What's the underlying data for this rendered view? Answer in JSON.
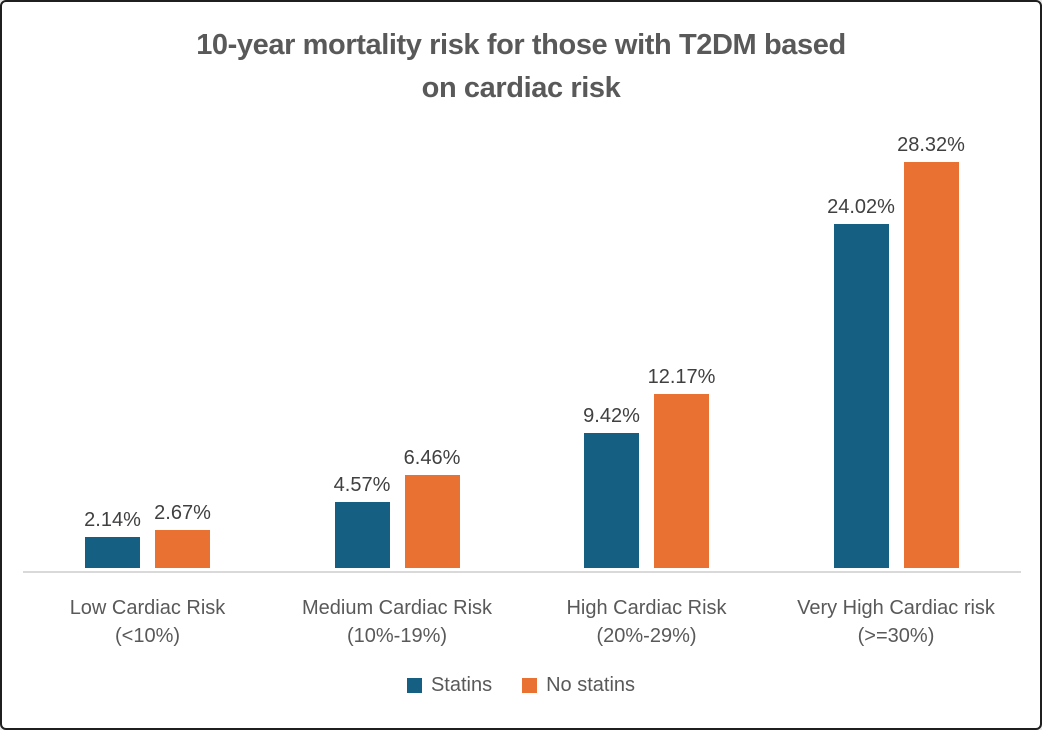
{
  "window": {
    "background": "#ffffff",
    "border_color": "#1f1f1f"
  },
  "chart_data": {
    "type": "bar",
    "title": "10-year mortality risk for those with T2DM based on cardiac risk",
    "title_lines": [
      "10-year mortality risk for those with T2DM based",
      "on cardiac risk"
    ],
    "categories": [
      {
        "label": "Low Cardiac Risk",
        "sublabel": "(<10%)"
      },
      {
        "label": "Medium Cardiac Risk",
        "sublabel": "(10%-19%)"
      },
      {
        "label": "High Cardiac Risk",
        "sublabel": "(20%-29%)"
      },
      {
        "label": "Very High Cardiac risk",
        "sublabel": "(>=30%)"
      }
    ],
    "series": [
      {
        "name": "Statins",
        "color": "#156082",
        "values": [
          2.14,
          4.57,
          9.42,
          24.02
        ],
        "data_labels": [
          "2.14%",
          "4.57%",
          "9.42%",
          "24.02%"
        ]
      },
      {
        "name": "No statins",
        "color": "#e97132",
        "values": [
          2.67,
          6.46,
          12.17,
          28.32
        ],
        "data_labels": [
          "2.67%",
          "6.46%",
          "12.17%",
          "28.32%"
        ]
      }
    ],
    "value_suffix": "%",
    "ylim": [
      0,
      30
    ],
    "grid": false,
    "y_axis_visible": false,
    "legend_position": "bottom",
    "colors": {
      "axis_line": "#d9d9d9",
      "title_text": "#595959",
      "data_label_text": "#404040",
      "axis_label_text": "#595959",
      "legend_text": "#595959"
    }
  }
}
